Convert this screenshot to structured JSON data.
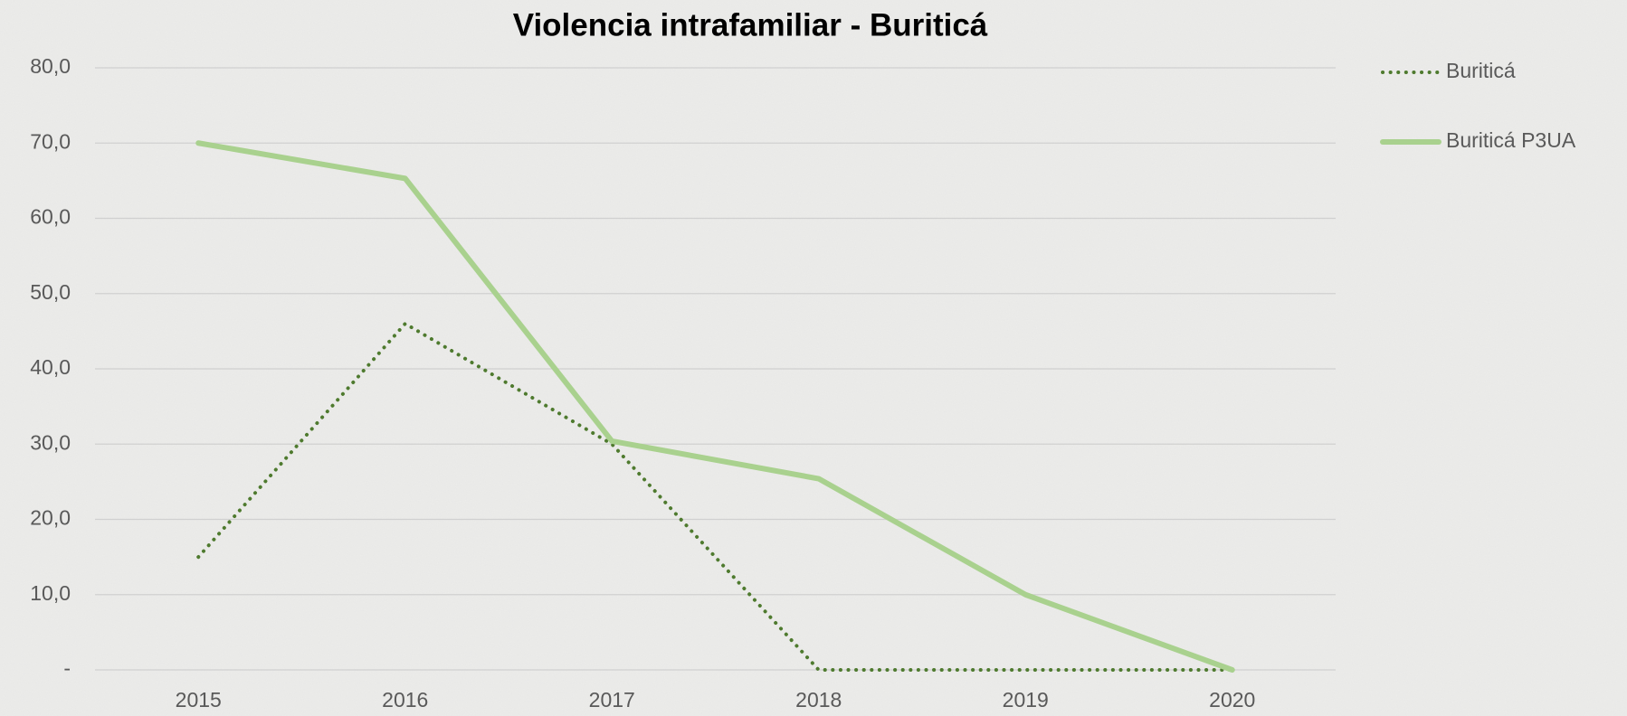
{
  "chart_data": {
    "type": "line",
    "title": "Violencia intrafamiliar - Buriticá",
    "categories": [
      "2015",
      "2016",
      "2017",
      "2018",
      "2019",
      "2020"
    ],
    "series": [
      {
        "name": "Buriticá",
        "color": "#4e7a2e",
        "dash": "dotted",
        "values": [
          15,
          46,
          30,
          0,
          0,
          0
        ]
      },
      {
        "name": "Buriticá P3UA",
        "color": "#a9d18e",
        "dash": "solid",
        "values": [
          70,
          65.3,
          30.4,
          25.4,
          10,
          0
        ]
      }
    ],
    "ylim": [
      0,
      80
    ],
    "yticks": [
      {
        "value": 0,
        "label": "-"
      },
      {
        "value": 10,
        "label": "10,0"
      },
      {
        "value": 20,
        "label": "20,0"
      },
      {
        "value": 30,
        "label": "30,0"
      },
      {
        "value": 40,
        "label": "40,0"
      },
      {
        "value": 50,
        "label": "50,0"
      },
      {
        "value": 60,
        "label": "60,0"
      },
      {
        "value": 70,
        "label": "70,0"
      },
      {
        "value": 80,
        "label": "80,0"
      }
    ],
    "grid": true,
    "legend": "right"
  }
}
